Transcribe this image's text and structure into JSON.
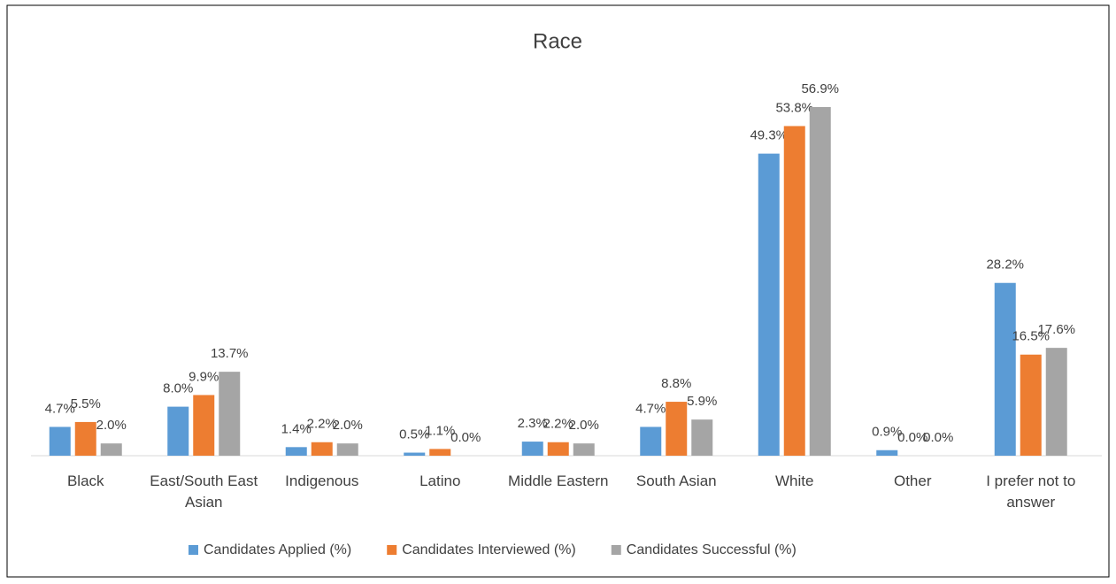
{
  "chart_data": {
    "type": "bar",
    "title": "Race",
    "categories": [
      "Black",
      "East/South East Asian",
      "Indigenous",
      "Latino",
      "Middle Eastern",
      "South Asian",
      "White",
      "Other",
      "I prefer not to answer"
    ],
    "series": [
      {
        "name": "Candidates Applied (%)",
        "color": "#5b9bd5",
        "values": [
          4.7,
          8.0,
          1.4,
          0.5,
          2.3,
          4.7,
          49.3,
          0.9,
          28.2
        ],
        "value_labels": [
          "4.7%",
          "8.0%",
          "1.4%",
          "0.5%",
          "2.3%",
          "4.7%",
          "49.3%",
          "0.9%",
          "28.2%"
        ]
      },
      {
        "name": "Candidates Interviewed (%)",
        "color": "#ed7d31",
        "values": [
          5.5,
          9.9,
          2.2,
          1.1,
          2.2,
          8.8,
          53.8,
          0.0,
          16.5
        ],
        "value_labels": [
          "5.5%",
          "9.9%",
          "2.2%",
          "1.1%",
          "2.2%",
          "8.8%",
          "53.8%",
          "0.0%",
          "16.5%"
        ]
      },
      {
        "name": "Candidates Successful (%)",
        "color": "#a5a5a5",
        "values": [
          2.0,
          13.7,
          2.0,
          0.0,
          2.0,
          5.9,
          56.9,
          0.0,
          17.6
        ],
        "value_labels": [
          "2.0%",
          "13.7%",
          "2.0%",
          "0.0%",
          "2.0%",
          "5.9%",
          "56.9%",
          "0.0%",
          "17.6%"
        ]
      }
    ],
    "legend": "bottom"
  }
}
